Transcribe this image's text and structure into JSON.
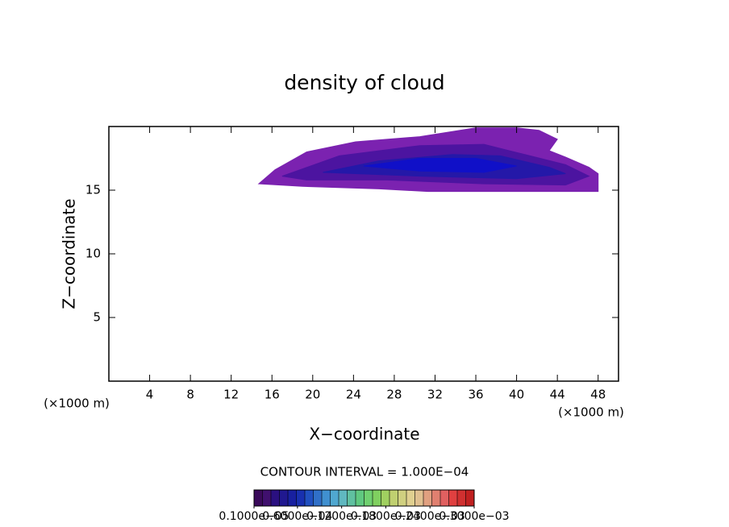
{
  "chart_data": {
    "type": "contour",
    "title": "density of cloud",
    "x_label": "X−coordinate",
    "y_label": "Z−coordinate",
    "x_unit": "(×1000 m)",
    "y_unit": "(×1000 m)",
    "xlim": [
      0,
      50
    ],
    "ylim": [
      0,
      20
    ],
    "xticks": [
      4,
      8,
      12,
      16,
      20,
      24,
      28,
      32,
      36,
      40,
      44,
      48
    ],
    "yticks": [
      5,
      10,
      15
    ],
    "contours": [
      {
        "color": "#7b22b0",
        "x": [
          14.7,
          16.3,
          19.4,
          24.2,
          30.5,
          36.0,
          40.0,
          42.2,
          44.0,
          43.2,
          44.8,
          47.1,
          48.0,
          48.0,
          31.3,
          26.5,
          19.0
        ],
        "z": [
          15.5,
          16.6,
          18.0,
          18.8,
          19.2,
          19.9,
          19.9,
          19.7,
          19.0,
          18.1,
          17.6,
          16.8,
          16.3,
          14.9,
          14.9,
          15.1,
          15.3
        ]
      },
      {
        "color": "#4c14a0",
        "x": [
          17.0,
          22.6,
          30.5,
          36.8,
          40.8,
          44.8,
          47.1,
          44.8,
          36.8,
          27.3,
          19.4
        ],
        "z": [
          16.1,
          17.7,
          18.5,
          18.6,
          17.8,
          17.0,
          16.1,
          15.4,
          15.5,
          15.8,
          15.8
        ]
      },
      {
        "color": "#2418a8",
        "x": [
          21.0,
          26.5,
          33.7,
          38.4,
          43.2,
          44.8,
          40.0,
          30.5,
          24.2
        ],
        "z": [
          16.4,
          17.3,
          17.8,
          17.7,
          16.8,
          16.3,
          15.9,
          16.1,
          16.3
        ]
      },
      {
        "color": "#1010c8",
        "x": [
          25.0,
          30.5,
          36.0,
          40.0,
          36.8,
          30.5
        ],
        "z": [
          16.9,
          17.5,
          17.5,
          16.9,
          16.4,
          16.5
        ]
      }
    ],
    "contour_interval_label": "CONTOUR INTERVAL = 1.000E−04",
    "colorbar": {
      "clim": [
        1e-06,
        0.0003
      ],
      "colors": [
        "#3a0a5a",
        "#40106e",
        "#2a1080",
        "#201890",
        "#1820a0",
        "#1830b0",
        "#2050c0",
        "#3070c8",
        "#4090d0",
        "#50a8d0",
        "#60b8c0",
        "#60c0a0",
        "#60c880",
        "#70d070",
        "#80d060",
        "#a0d060",
        "#c0d070",
        "#d0d080",
        "#e0d090",
        "#e0c090",
        "#e0a080",
        "#e08070",
        "#e06060",
        "#e04040",
        "#d03030",
        "#c02020"
      ],
      "ticks": [
        {
          "value": 1e-06,
          "label": "0.1000e−05"
        },
        {
          "value": 6e-05,
          "label": "0.6000e−04"
        },
        {
          "value": 0.00012,
          "label": "0.1200e−03"
        },
        {
          "value": 0.00018,
          "label": "0.1800e−03"
        },
        {
          "value": 0.00024,
          "label": "0.2400e−03"
        },
        {
          "value": 0.0003,
          "label": "0.3000e−03"
        }
      ]
    }
  }
}
